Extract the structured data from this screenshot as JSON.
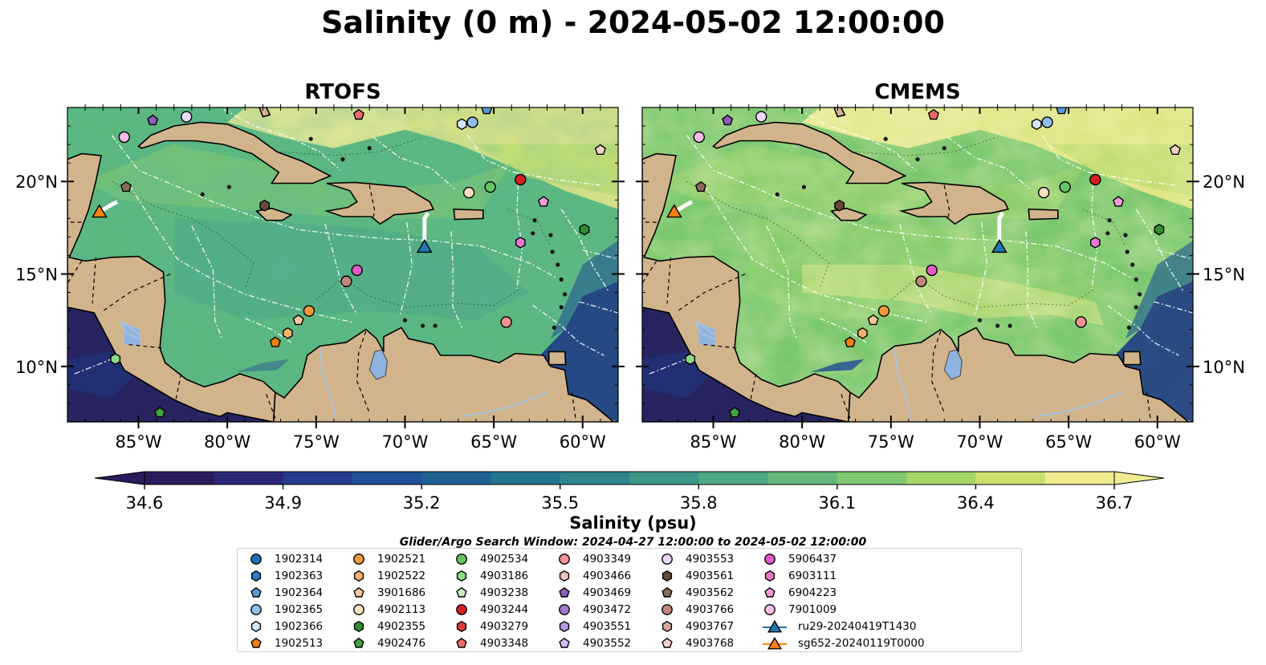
{
  "figure": {
    "title": "Salinity (0 m) - 2024-05-02 12:00:00",
    "panels": [
      {
        "title": "RTOFS"
      },
      {
        "title": "CMEMS"
      }
    ],
    "x_ticks": [
      "85°W",
      "80°W",
      "75°W",
      "70°W",
      "65°W",
      "60°W"
    ],
    "x_tick_values": [
      -85,
      -80,
      -75,
      -70,
      -65,
      -60
    ],
    "y_ticks": [
      "20°N",
      "15°N",
      "10°N"
    ],
    "y_tick_values": [
      20,
      15,
      10
    ],
    "extent": {
      "lon_min": -89,
      "lon_max": -58,
      "lat_min": 7,
      "lat_max": 24
    },
    "colorbar": {
      "label": "Salinity (psu)",
      "vmin": 34.6,
      "vmax": 36.7,
      "ticks": [
        "34.6",
        "34.9",
        "35.2",
        "35.5",
        "35.8",
        "36.1",
        "36.4",
        "36.7"
      ],
      "extend": "both",
      "colormap": [
        "#2b1a5c",
        "#2c2878",
        "#283a8e",
        "#1f4f96",
        "#1e6293",
        "#237490",
        "#2e858c",
        "#3c9688",
        "#4ea784",
        "#63b97d",
        "#80c970",
        "#a5d667",
        "#cadf6d",
        "#f0ec8f"
      ]
    },
    "search_window": "Glider/Argo Search Window: 2024-04-27 12:00:00 to 2024-05-02 12:00:00",
    "colors": {
      "land": "#d2b48c",
      "water_body": "#8fb3e0",
      "rtofs_sea": "#5cb87e",
      "cmems_sea": "#7cc870",
      "deep_ocean": "#27245f"
    }
  },
  "floats": [
    {
      "name": "1902314",
      "color": "#1f6fb2",
      "shape": "circle"
    },
    {
      "name": "1902363",
      "color": "#2a78c2",
      "shape": "hexagon"
    },
    {
      "name": "1902364",
      "color": "#5a9ad6",
      "shape": "pentagon",
      "lon": -65.4,
      "lat": 23.9
    },
    {
      "name": "1902365",
      "color": "#8fbfec",
      "shape": "circle",
      "lon": -66.2,
      "lat": 23.2
    },
    {
      "name": "1902366",
      "color": "#d2e8fa",
      "shape": "hexagon",
      "lon": -66.8,
      "lat": 23.1
    },
    {
      "name": "1902513",
      "color": "#f07f10",
      "shape": "pentagon",
      "lon": -77.3,
      "lat": 11.3
    },
    {
      "name": "1902521",
      "color": "#f39a3e",
      "shape": "circle",
      "lon": -75.4,
      "lat": 13.0
    },
    {
      "name": "1902522",
      "color": "#f6b070",
      "shape": "hexagon",
      "lon": -76.6,
      "lat": 11.8
    },
    {
      "name": "3901686",
      "color": "#f8c89a",
      "shape": "pentagon",
      "lon": -76.0,
      "lat": 12.5
    },
    {
      "name": "4902113",
      "color": "#fde0c4",
      "shape": "circle",
      "lon": -66.4,
      "lat": 19.4
    },
    {
      "name": "4902355",
      "color": "#2f8f2f",
      "shape": "hexagon",
      "lon": -59.9,
      "lat": 17.4
    },
    {
      "name": "4902476",
      "color": "#43a043",
      "shape": "pentagon",
      "lon": -83.8,
      "lat": 7.5
    },
    {
      "name": "4902534",
      "color": "#66c466",
      "shape": "circle",
      "lon": -65.2,
      "lat": 19.7
    },
    {
      "name": "4903186",
      "color": "#8fd88a",
      "shape": "hexagon",
      "lon": -86.3,
      "lat": 10.4
    },
    {
      "name": "4903238",
      "color": "#c8f0bf",
      "shape": "pentagon"
    },
    {
      "name": "4903244",
      "color": "#d42020",
      "shape": "circle",
      "lon": -63.5,
      "lat": 20.1
    },
    {
      "name": "4903279",
      "color": "#e03c3c",
      "shape": "hexagon"
    },
    {
      "name": "4903348",
      "color": "#ee6b6b",
      "shape": "pentagon",
      "lon": -72.6,
      "lat": 23.6
    },
    {
      "name": "4903349",
      "color": "#f49191",
      "shape": "circle",
      "lon": -64.3,
      "lat": 12.4
    },
    {
      "name": "4903466",
      "color": "#f8c0c0",
      "shape": "hexagon"
    },
    {
      "name": "4903469",
      "color": "#8b5cb8",
      "shape": "pentagon",
      "lon": -84.2,
      "lat": 23.3
    },
    {
      "name": "4903472",
      "color": "#a07ccc",
      "shape": "circle"
    },
    {
      "name": "4903551",
      "color": "#b99ae0",
      "shape": "hexagon"
    },
    {
      "name": "4903552",
      "color": "#d6bdf0",
      "shape": "pentagon"
    },
    {
      "name": "4903553",
      "color": "#ead7fb",
      "shape": "circle",
      "lon": -82.3,
      "lat": 23.5
    },
    {
      "name": "4903561",
      "color": "#6b4a3a",
      "shape": "hexagon",
      "lon": -77.9,
      "lat": 18.7
    },
    {
      "name": "4903562",
      "color": "#8c6a5a",
      "shape": "pentagon",
      "lon": -85.7,
      "lat": 19.7
    },
    {
      "name": "4903766",
      "color": "#c08878",
      "shape": "circle",
      "lon": -73.3,
      "lat": 14.6
    },
    {
      "name": "4903767",
      "color": "#d8a898",
      "shape": "hexagon"
    },
    {
      "name": "4903768",
      "color": "#f2d2c8",
      "shape": "pentagon",
      "lon": -59.0,
      "lat": 21.7
    },
    {
      "name": "5906437",
      "color": "#e05cc4",
      "shape": "circle",
      "lon": -72.7,
      "lat": 15.2
    },
    {
      "name": "6903111",
      "color": "#e878cc",
      "shape": "hexagon",
      "lon": -63.5,
      "lat": 16.7
    },
    {
      "name": "6904223",
      "color": "#f29bd8",
      "shape": "pentagon",
      "lon": -62.2,
      "lat": 18.9
    },
    {
      "name": "7901009",
      "color": "#f8bde8",
      "shape": "circle",
      "lon": -85.8,
      "lat": 22.4
    },
    {
      "name": "ru29-20240419T1430",
      "color": "#1f77b4",
      "shape": "triangle-line",
      "lon": -68.9,
      "lat": 16.5
    },
    {
      "name": "sg652-20240119T0000",
      "color": "#ff7f0e",
      "shape": "triangle-line",
      "lon": -87.2,
      "lat": 18.4
    }
  ]
}
